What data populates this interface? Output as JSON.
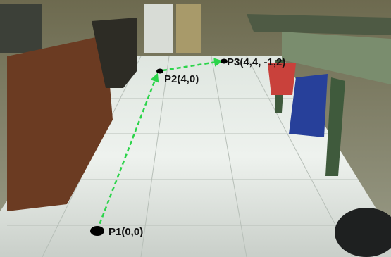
{
  "points": [
    {
      "label": "P1(0,0)"
    },
    {
      "label": "P2(4,0)"
    },
    {
      "label": "P3(4,4, -1,2)"
    }
  ]
}
